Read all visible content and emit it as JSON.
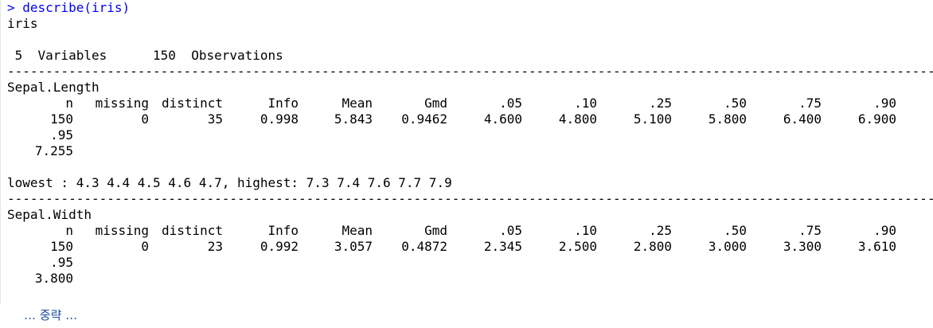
{
  "console": {
    "prompt": "> ",
    "command": "describe(iris)",
    "dataset": "iris",
    "summary": " 5  Variables      150  Observations",
    "rule_dash": "-",
    "variables": [
      {
        "name": "Sepal.Length",
        "headers": [
          "n",
          "missing",
          "distinct",
          "Info",
          "Mean",
          "Gmd",
          ".05",
          ".10",
          ".25",
          ".50",
          ".75",
          ".90"
        ],
        "values": [
          "150",
          "0",
          "35",
          "0.998",
          "5.843",
          "0.9462",
          "4.600",
          "4.800",
          "5.100",
          "5.800",
          "6.400",
          "6.900"
        ],
        "extra_header": ".95",
        "extra_value": "7.255",
        "range": "lowest : 4.3 4.4 4.5 4.6 4.7, highest: 7.3 7.4 7.6 7.7 7.9"
      },
      {
        "name": "Sepal.Width",
        "headers": [
          "n",
          "missing",
          "distinct",
          "Info",
          "Mean",
          "Gmd",
          ".05",
          ".10",
          ".25",
          ".50",
          ".75",
          ".90"
        ],
        "values": [
          "150",
          "0",
          "23",
          "0.992",
          "3.057",
          "0.4872",
          "2.345",
          "2.500",
          "2.800",
          "3.000",
          "3.300",
          "3.610"
        ],
        "extra_header": ".95",
        "extra_value": "3.800"
      }
    ]
  },
  "omitted_note": "… 중략 …",
  "colors": {
    "command": "#0000ff",
    "output": "#000000",
    "note": "#1f4e9c"
  }
}
